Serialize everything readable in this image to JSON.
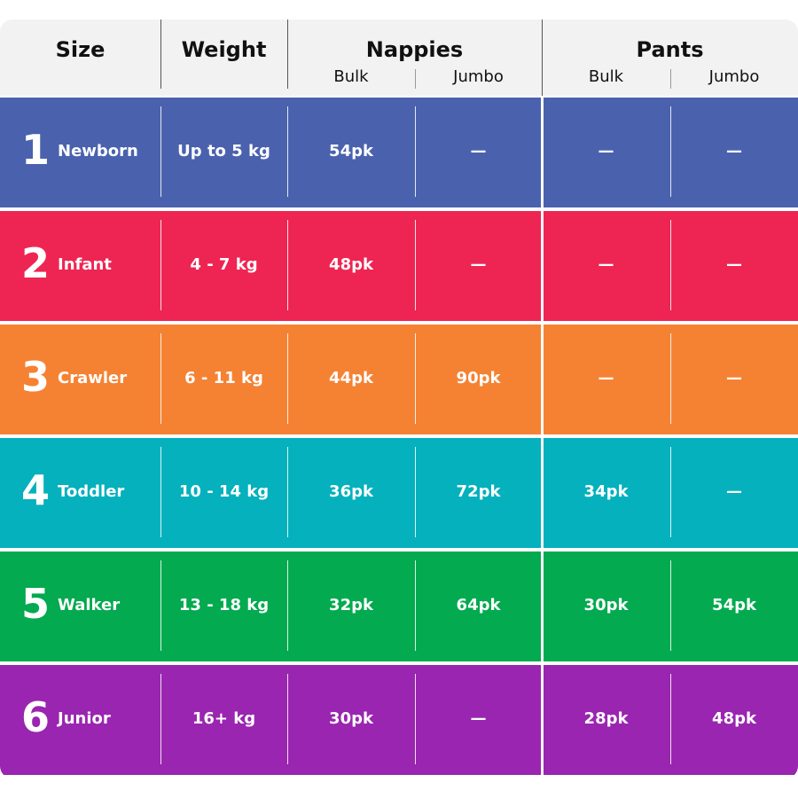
{
  "header": {
    "size": "Size",
    "weight": "Weight",
    "nappies": "Nappies",
    "pants": "Pants",
    "subcolumns": [
      "Bulk",
      "Jumbo",
      "Bulk",
      "Jumbo"
    ]
  },
  "rows": [
    {
      "number": "1",
      "name": "Newborn",
      "weight": "Up to 5 kg",
      "cells": [
        "54pk",
        "—",
        "—",
        "—"
      ]
    },
    {
      "number": "2",
      "name": "Infant",
      "weight": "4 - 7 kg",
      "cells": [
        "48pk",
        "—",
        "—",
        "—"
      ]
    },
    {
      "number": "3",
      "name": "Crawler",
      "weight": "6 - 11 kg",
      "cells": [
        "44pk",
        "90pk",
        "—",
        "—"
      ]
    },
    {
      "number": "4",
      "name": "Toddler",
      "weight": "10 - 14 kg",
      "cells": [
        "36pk",
        "72pk",
        "34pk",
        "—"
      ]
    },
    {
      "number": "5",
      "name": "Walker",
      "weight": "13 - 18 kg",
      "cells": [
        "32pk",
        "64pk",
        "30pk",
        "54pk"
      ]
    },
    {
      "number": "6",
      "name": "Junior",
      "weight": "16+ kg",
      "cells": [
        "30pk",
        "—",
        "28pk",
        "48pk"
      ]
    }
  ]
}
